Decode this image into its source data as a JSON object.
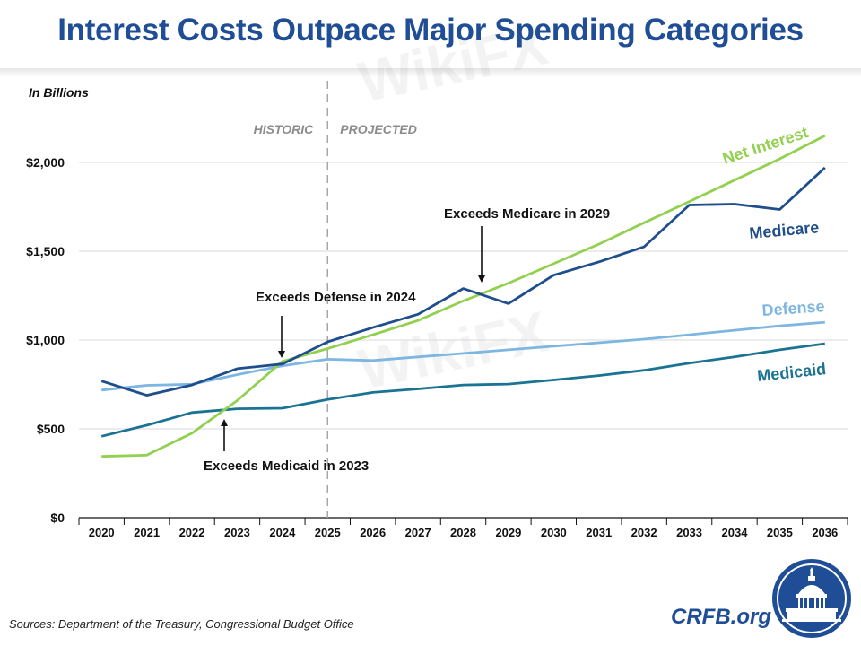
{
  "page": {
    "title": "Interest Costs Outpace Major Spending Categories",
    "source": "Sources: Department of the Treasury, Congressional Budget Office",
    "site": "CRFB.org",
    "watermark": "WikiFX"
  },
  "chart_data": {
    "type": "line",
    "title": "Interest Costs Outpace Major Spending Categories",
    "ylabel": "In Billions",
    "xlabel": "",
    "x": [
      "2020",
      "2021",
      "2022",
      "2023",
      "2024",
      "2025",
      "2026",
      "2027",
      "2028",
      "2029",
      "2030",
      "2031",
      "2032",
      "2033",
      "2034",
      "2035",
      "2036"
    ],
    "ylim": [
      0,
      2250
    ],
    "yticks": [
      0,
      500,
      1000,
      1500,
      2000
    ],
    "ytick_labels": [
      "$0",
      "$500",
      "$1,000",
      "$1,500",
      "$2,000"
    ],
    "grid": "horizontal",
    "period_divider": {
      "at": "2025",
      "left_label": "HISTORIC",
      "right_label": "PROJECTED"
    },
    "series": [
      {
        "name": "Net Interest",
        "color": "#92d050",
        "values": [
          345,
          352,
          475,
          659,
          880,
          952,
          1030,
          1110,
          1220,
          1320,
          1430,
          1540,
          1660,
          1780,
          1900,
          2020,
          2150
        ]
      },
      {
        "name": "Medicare",
        "color": "#1f4e8c",
        "values": [
          769,
          689,
          747,
          839,
          865,
          990,
          1070,
          1145,
          1290,
          1205,
          1365,
          1440,
          1525,
          1760,
          1765,
          1735,
          1970
        ]
      },
      {
        "name": "Defense",
        "color": "#7eb6e2",
        "values": [
          718,
          745,
          751,
          805,
          855,
          892,
          885,
          905,
          925,
          945,
          965,
          985,
          1005,
          1030,
          1055,
          1080,
          1100
        ]
      },
      {
        "name": "Medicaid",
        "color": "#1b7393",
        "values": [
          458,
          520,
          592,
          613,
          616,
          665,
          705,
          725,
          747,
          752,
          775,
          800,
          830,
          870,
          905,
          945,
          980
        ]
      }
    ],
    "annotations": [
      {
        "text": "Exceeds Medicare in 2029"
      },
      {
        "text": "Exceeds Defense in 2024"
      },
      {
        "text": "Exceeds Medicaid in 2023"
      }
    ]
  }
}
